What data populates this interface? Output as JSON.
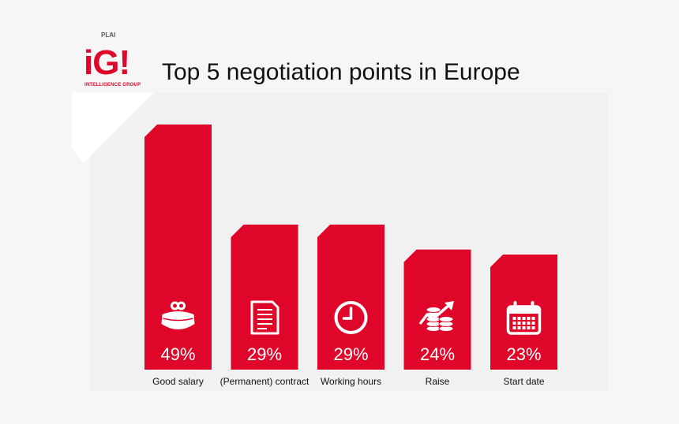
{
  "colors": {
    "accent": "#e0062a",
    "text": "#111111",
    "icon": "#ffffff"
  },
  "logo": {
    "topline": "PLAI",
    "mark": "iG!",
    "subtitle": "INTELLIGENCE GROUP"
  },
  "chart_data": {
    "type": "bar",
    "title": "Top 5 negotiation points in Europe",
    "xlabel": "",
    "ylabel": "",
    "grid": false,
    "ylim": [
      0,
      49
    ],
    "categories": [
      "Good salary",
      "(Permanent) contract",
      "Working hours",
      "Raise",
      "Start date"
    ],
    "values": [
      49,
      29,
      29,
      24,
      23
    ],
    "value_labels": [
      "49%",
      "29%",
      "29%",
      "24%",
      "23%"
    ],
    "icons": [
      "purse-icon",
      "document-icon",
      "clock-icon",
      "coins-rising-icon",
      "calendar-icon"
    ]
  }
}
